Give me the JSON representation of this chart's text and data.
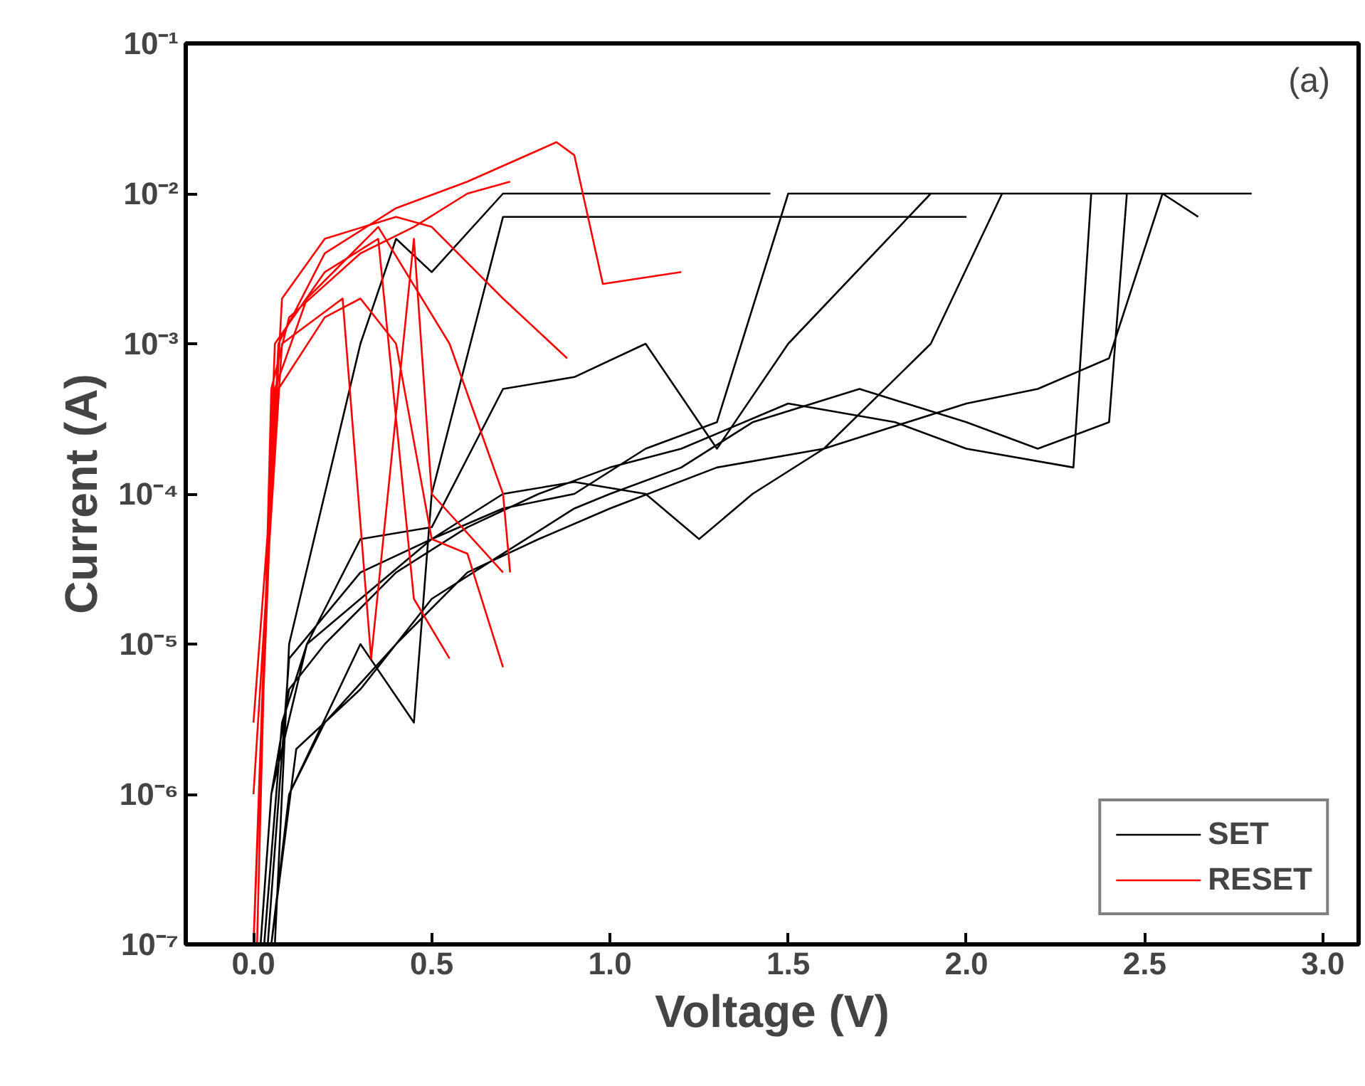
{
  "chart_data": {
    "type": "line",
    "xlabel": "Voltage (V)",
    "ylabel": "Current (A)",
    "log": "y",
    "xlim": [
      -0.19,
      3.1
    ],
    "xticks": [
      {
        "value": 0,
        "label": "0.0"
      },
      0.5,
      {
        "value": 1,
        "label": "1.0"
      },
      1.5,
      {
        "value": 2,
        "label": "2.0"
      },
      2.5,
      {
        "value": 3,
        "label": "3.0"
      }
    ],
    "ylim": [
      1e-07,
      0.1
    ],
    "yticks": [
      {
        "value": 1e-07,
        "label": "10⁻⁷"
      },
      {
        "value": 1e-06,
        "label": "10⁻⁶"
      },
      {
        "value": 1e-05,
        "label": "10⁻⁵"
      },
      {
        "value": 0.0001,
        "label": "10⁻⁴"
      },
      {
        "value": 0.001,
        "label": "10⁻³"
      },
      {
        "value": 0.01,
        "label": "10⁻²"
      },
      {
        "value": 0.1,
        "label": "10⁻¹"
      }
    ],
    "grid": false,
    "legend": "bottom right",
    "marker": "none",
    "line_style": "solid",
    "annotations": [
      "(a)"
    ],
    "series": [
      {
        "name": "SET",
        "color": "#000000",
        "x": [
          0.02,
          0.05,
          0.1,
          0.2,
          0.4,
          0.6,
          0.8,
          1.0,
          1.2,
          1.5,
          1.8,
          2.0,
          2.3,
          2.35,
          2.8,
          null,
          0.05,
          0.1,
          0.2,
          0.4,
          0.6,
          0.8,
          1.0,
          1.3,
          1.6,
          2.0,
          2.2,
          2.4,
          2.55,
          2.65,
          null,
          0.03,
          0.08,
          0.15,
          0.3,
          0.5,
          0.7,
          0.9,
          1.1,
          1.3,
          1.5,
          2.5,
          null,
          0.04,
          0.1,
          0.3,
          0.5,
          0.7,
          0.9,
          1.1,
          1.25,
          1.4,
          1.6,
          1.9,
          2.1,
          null,
          0.06,
          0.1,
          0.2,
          0.3,
          0.4,
          0.5,
          0.7,
          1.45,
          null,
          0.05,
          0.15,
          0.3,
          0.5,
          0.7,
          0.9,
          1.1,
          1.3,
          1.5,
          1.9,
          2.3,
          null,
          0.05,
          0.12,
          0.3,
          0.5,
          0.7,
          0.9,
          1.0,
          1.2,
          1.4,
          1.7,
          2.0,
          2.2,
          2.4,
          2.45,
          null,
          0.1,
          0.3,
          0.45,
          0.5,
          0.7,
          1.5,
          2.0
        ],
        "values": [
          1e-07,
          1e-06,
          5e-06,
          1e-05,
          3e-05,
          6e-05,
          0.0001,
          0.00015,
          0.0002,
          0.0004,
          0.0003,
          0.0002,
          0.00015,
          0.01,
          0.01,
          null,
          1e-07,
          1e-06,
          3e-06,
          1e-05,
          3e-05,
          5e-05,
          8e-05,
          0.00015,
          0.0002,
          0.0004,
          0.0005,
          0.0008,
          0.01,
          0.007,
          null,
          1e-07,
          3e-06,
          1e-05,
          2e-05,
          5e-05,
          8e-05,
          0.0001,
          0.0002,
          0.0003,
          0.01,
          0.01,
          null,
          1e-07,
          8e-06,
          3e-05,
          5e-05,
          0.0001,
          0.00012,
          0.0001,
          5e-05,
          0.0001,
          0.0002,
          0.001,
          0.01,
          null,
          1e-07,
          1e-05,
          0.0001,
          0.001,
          0.005,
          0.003,
          0.01,
          0.01,
          null,
          1e-06,
          1e-05,
          5e-05,
          6e-05,
          0.0005,
          0.0006,
          0.001,
          0.0002,
          0.001,
          0.01,
          0.01,
          null,
          1e-07,
          2e-06,
          5e-06,
          2e-05,
          4e-05,
          8e-05,
          0.0001,
          0.00015,
          0.0003,
          0.0005,
          0.0003,
          0.0002,
          0.0003,
          0.01,
          null,
          1e-06,
          1e-05,
          3e-06,
          0.0001,
          0.007,
          0.007,
          0.007
        ]
      },
      {
        "name": "RESET",
        "color": "#ff0000",
        "x": [
          0.0,
          0.03,
          0.07,
          0.2,
          0.4,
          0.6,
          0.85,
          0.9,
          0.98,
          1.2,
          null,
          0.0,
          0.05,
          0.08,
          0.2,
          0.4,
          0.5,
          0.7,
          0.88,
          null,
          0.01,
          0.05,
          0.1,
          0.3,
          0.45,
          0.6,
          0.72,
          null,
          0.0,
          0.06,
          0.2,
          0.35,
          0.45,
          0.55,
          null,
          0.0,
          0.07,
          0.2,
          0.3,
          0.4,
          0.5,
          0.6,
          0.7,
          null,
          0.0,
          0.08,
          0.25,
          0.33,
          0.45,
          0.5,
          0.7,
          null,
          0.0,
          0.06,
          0.15,
          0.35,
          0.55,
          0.7,
          0.72
        ],
        "values": [
          1e-07,
          1e-05,
          0.001,
          0.004,
          0.008,
          0.012,
          0.022,
          0.018,
          0.0025,
          0.003,
          null,
          1e-07,
          0.0001,
          0.002,
          0.005,
          0.007,
          0.006,
          0.002,
          0.0008,
          null,
          1e-07,
          0.0005,
          0.0015,
          0.004,
          0.006,
          0.01,
          0.012,
          null,
          1e-07,
          0.001,
          0.003,
          0.005,
          2e-05,
          8e-06,
          null,
          3e-06,
          0.0005,
          0.0015,
          0.002,
          0.001,
          5e-05,
          4e-05,
          7e-06,
          null,
          1e-06,
          0.001,
          0.002,
          8e-06,
          0.005,
          0.0001,
          3e-05,
          null,
          1e-07,
          0.0005,
          0.002,
          0.006,
          0.001,
          0.0001,
          3e-05
        ]
      }
    ]
  }
}
